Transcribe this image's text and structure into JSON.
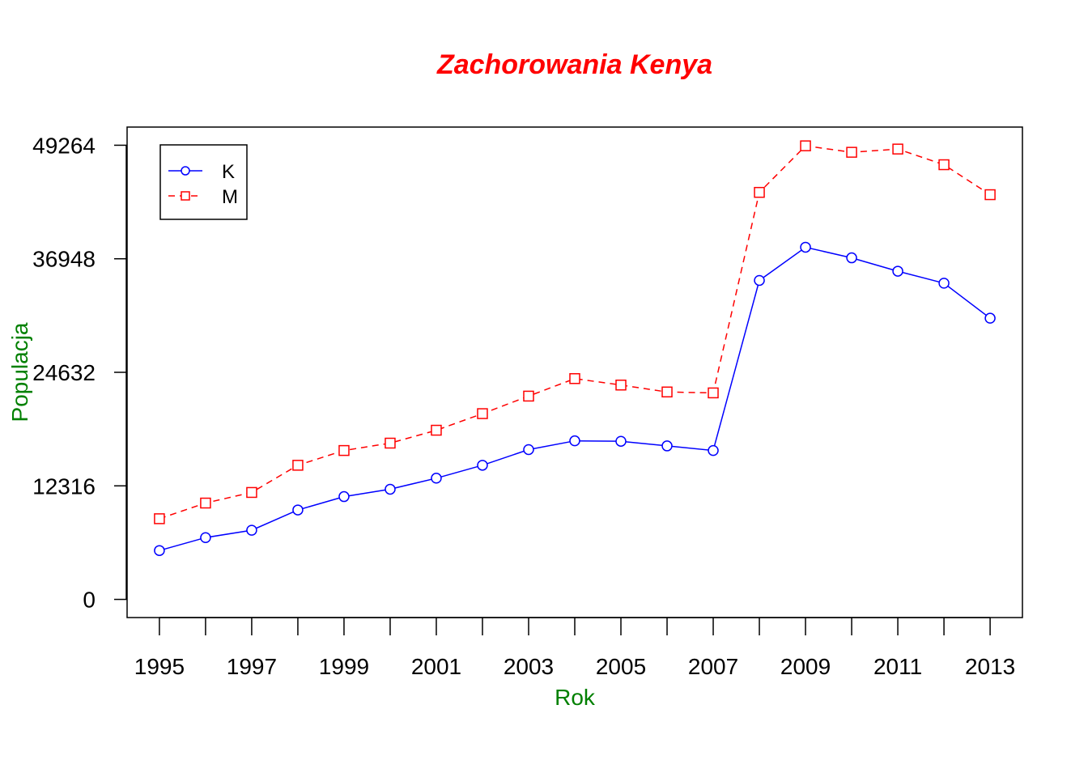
{
  "chart_data": {
    "type": "line",
    "title": "Zachorowania Kenya",
    "xlabel": "Rok",
    "ylabel": "Populacja",
    "x": [
      1995,
      1996,
      1997,
      1998,
      1999,
      2000,
      2001,
      2002,
      2003,
      2004,
      2005,
      2006,
      2007,
      2008,
      2009,
      2010,
      2011,
      2012,
      2013
    ],
    "x_tick_labels": [
      "1995",
      "1997",
      "1999",
      "2001",
      "2003",
      "2005",
      "2007",
      "2009",
      "2011",
      "2013"
    ],
    "y_ticks": [
      0,
      12316,
      24632,
      36948,
      49264
    ],
    "y_tick_labels": [
      "0",
      "12316",
      "24632",
      "36948",
      "49264"
    ],
    "xlim": [
      1994.3,
      2013.7
    ],
    "ylim": [
      -1970,
      51234
    ],
    "grid": false,
    "legend_position": "top-left",
    "series": [
      {
        "name": "K",
        "color": "#0000FF",
        "line_style": "solid",
        "marker": "circle",
        "values": [
          5300,
          6700,
          7500,
          9700,
          11150,
          11950,
          13150,
          14550,
          16250,
          17200,
          17150,
          16650,
          16150,
          34600,
          38200,
          37050,
          35600,
          34300,
          30500
        ]
      },
      {
        "name": "M",
        "color": "#FF0000",
        "line_style": "dashed",
        "marker": "square",
        "values": [
          8750,
          10450,
          11600,
          14550,
          16150,
          16950,
          18350,
          20150,
          22050,
          23950,
          23250,
          22500,
          22400,
          44150,
          49200,
          48500,
          48850,
          47150,
          43900
        ]
      }
    ]
  },
  "colors": {
    "title": "#FF0000",
    "axis_label": "#008000"
  }
}
